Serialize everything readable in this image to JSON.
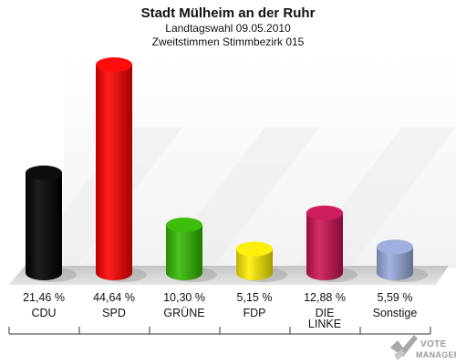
{
  "chart_data": {
    "type": "bar",
    "title": "Stadt Mülheim an der Ruhr",
    "subtitle_1": "Landtagswahl 09.05.2010",
    "subtitle_2": "Zweitstimmen Stimmbezirk 015",
    "unit": "%",
    "ylim": [
      0,
      44.64
    ],
    "categories": [
      {
        "label_lines": [
          "CDU"
        ],
        "value": 21.46,
        "value_label": "21,46 %",
        "color": "#000000"
      },
      {
        "label_lines": [
          "SPD"
        ],
        "value": 44.64,
        "value_label": "44,64 %",
        "color": "#ff0000"
      },
      {
        "label_lines": [
          "GRÜNE"
        ],
        "value": 10.3,
        "value_label": "10,30 %",
        "color": "#33bb00"
      },
      {
        "label_lines": [
          "FDP"
        ],
        "value": 5.15,
        "value_label": "5,15 %",
        "color": "#ffee00"
      },
      {
        "label_lines": [
          "DIE",
          "LINKE"
        ],
        "value": 12.88,
        "value_label": "12,88 %",
        "color": "#cc1155"
      },
      {
        "label_lines": [
          "Sonstige"
        ],
        "value": 5.59,
        "value_label": "5,59 %",
        "color": "#99aadd"
      }
    ]
  },
  "logo": {
    "line1": "VOTE",
    "line2": "MANAGER"
  }
}
